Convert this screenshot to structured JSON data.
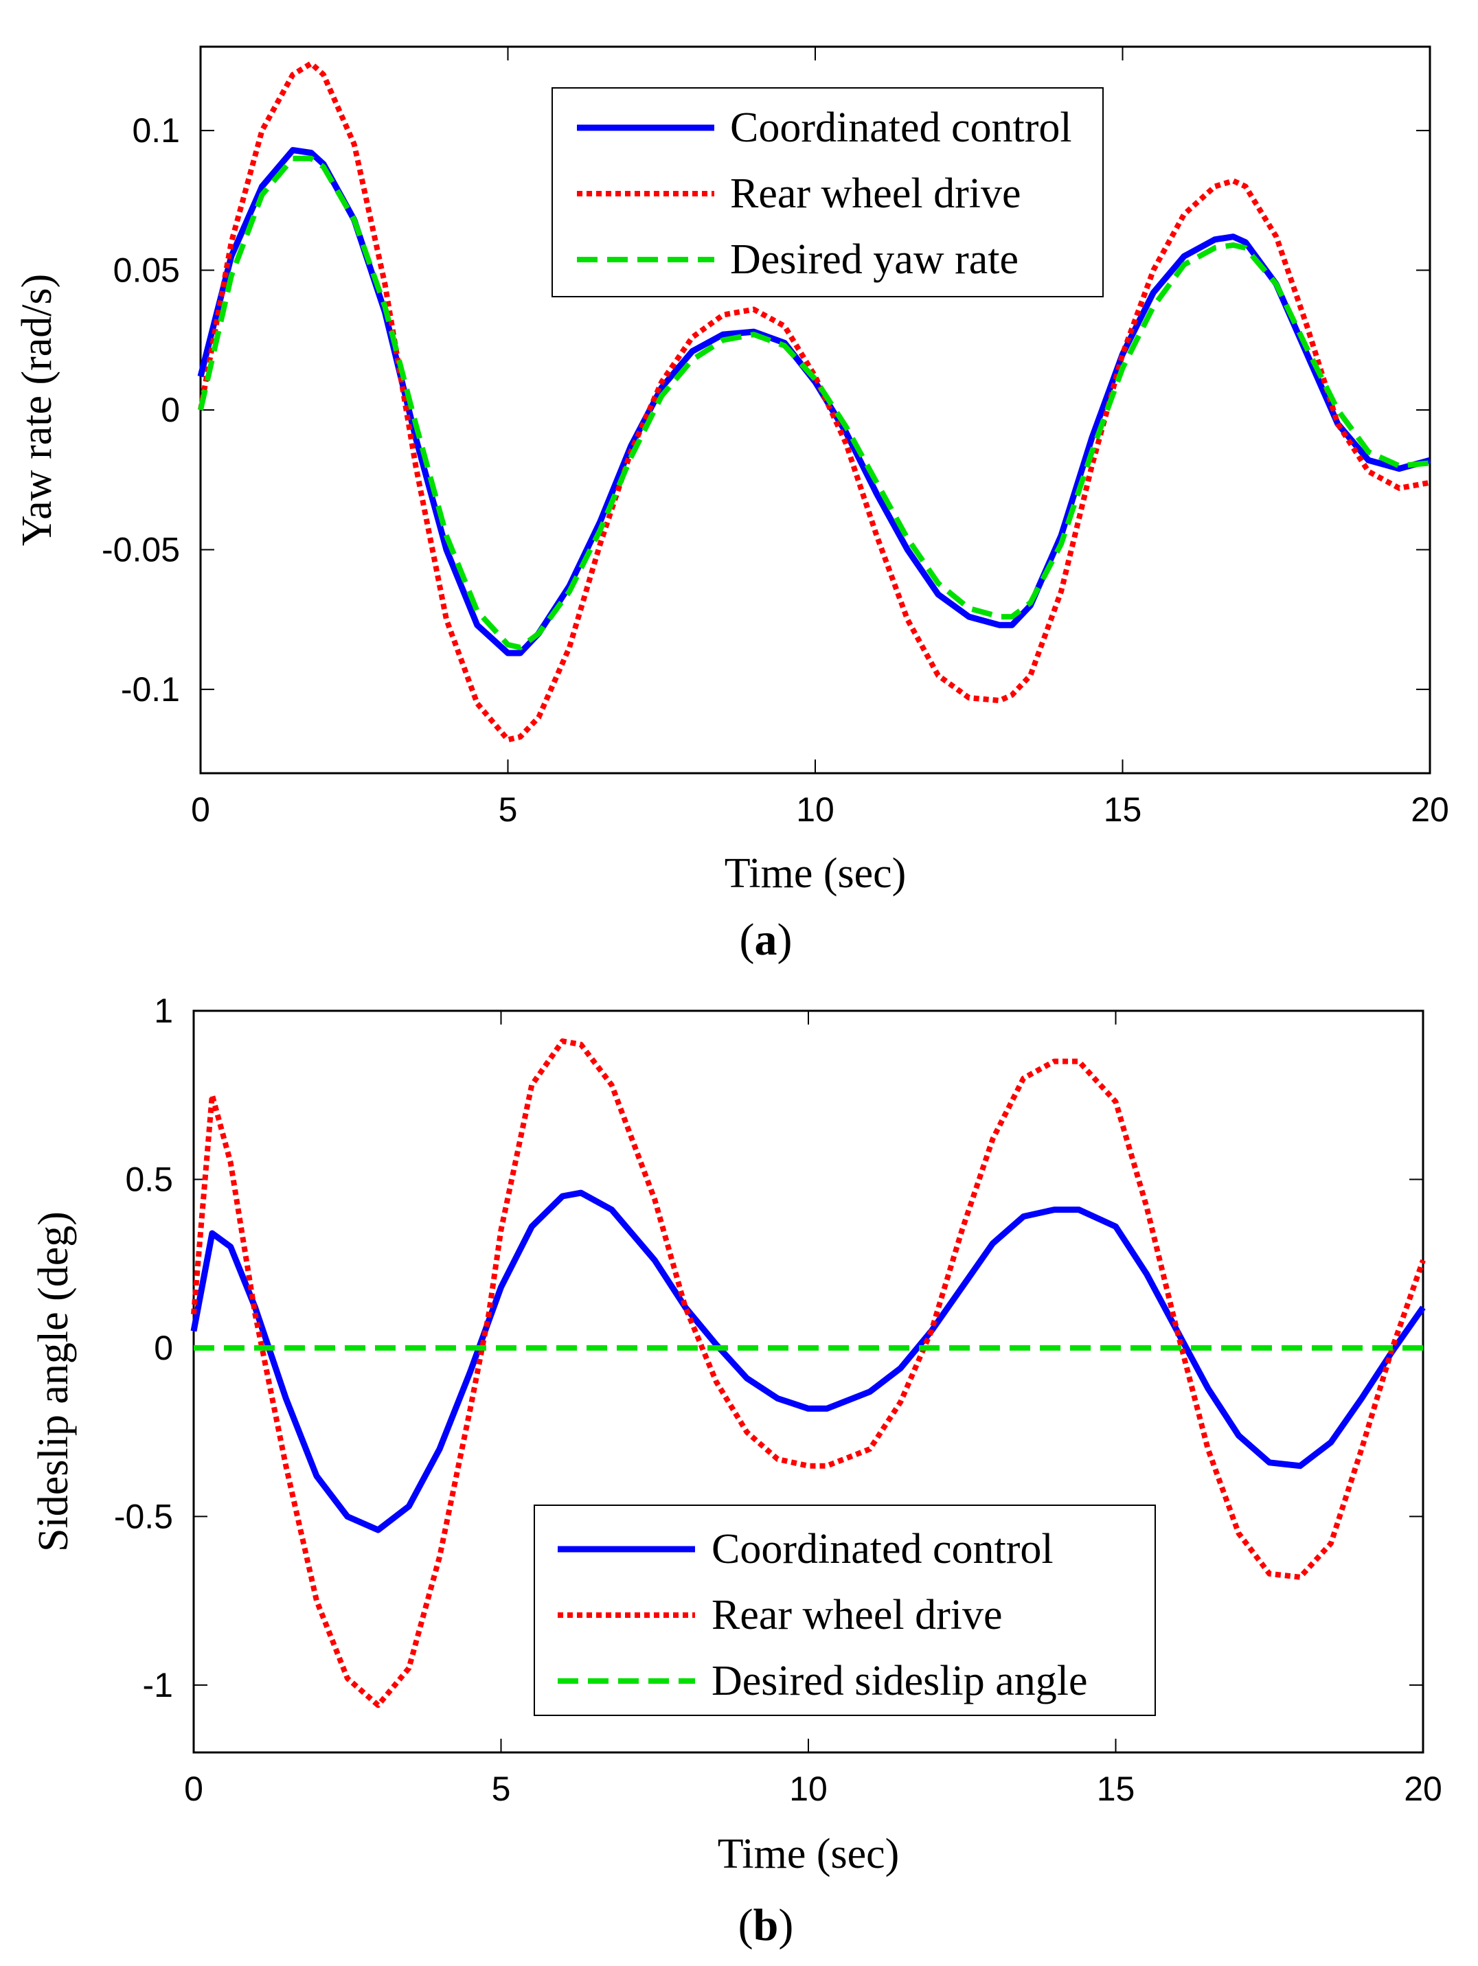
{
  "chart_data": [
    {
      "type": "line",
      "panel_label": "a",
      "xlabel": "Time (sec)",
      "ylabel": "Yaw rate (rad/s)",
      "xlim": [
        0,
        20
      ],
      "ylim": [
        -0.13,
        0.13
      ],
      "xticks": [
        0,
        5,
        10,
        15,
        20
      ],
      "yticks": [
        -0.1,
        -0.05,
        0,
        0.05,
        0.1
      ],
      "xtick_labels": [
        "0",
        "5",
        "10",
        "15",
        "20"
      ],
      "ytick_labels": [
        "-0.1",
        "-0.05",
        "0",
        "0.05",
        "0.1"
      ],
      "grid": false,
      "legend_position": "top-center",
      "x": [
        0,
        0.5,
        1,
        1.5,
        1.8,
        2,
        2.5,
        3,
        3.5,
        4,
        4.5,
        5,
        5.2,
        5.5,
        6,
        6.5,
        7,
        7.5,
        8,
        8.5,
        9,
        9.5,
        10,
        10.5,
        11,
        11.5,
        12,
        12.5,
        13,
        13.2,
        13.5,
        14,
        14.5,
        15,
        15.5,
        16,
        16.5,
        16.8,
        17,
        17.5,
        18,
        18.5,
        19,
        19.5,
        20
      ],
      "series": [
        {
          "name": "Coordinated control",
          "color": "#0000ff",
          "dash": "solid",
          "values": [
            0.012,
            0.055,
            0.08,
            0.093,
            0.092,
            0.088,
            0.068,
            0.035,
            -0.01,
            -0.05,
            -0.077,
            -0.087,
            -0.087,
            -0.08,
            -0.063,
            -0.04,
            -0.013,
            0.008,
            0.021,
            0.027,
            0.028,
            0.024,
            0.01,
            -0.008,
            -0.03,
            -0.05,
            -0.066,
            -0.074,
            -0.077,
            -0.077,
            -0.07,
            -0.045,
            -0.01,
            0.02,
            0.042,
            0.055,
            0.061,
            0.062,
            0.06,
            0.045,
            0.02,
            -0.005,
            -0.018,
            -0.021,
            -0.018
          ]
        },
        {
          "name": "Rear wheel drive",
          "color": "#ff0000",
          "dash": "dotted",
          "values": [
            0.0,
            0.06,
            0.1,
            0.12,
            0.124,
            0.12,
            0.095,
            0.045,
            -0.02,
            -0.075,
            -0.105,
            -0.118,
            -0.117,
            -0.11,
            -0.085,
            -0.048,
            -0.015,
            0.01,
            0.026,
            0.034,
            0.036,
            0.03,
            0.012,
            -0.012,
            -0.045,
            -0.075,
            -0.095,
            -0.103,
            -0.104,
            -0.102,
            -0.095,
            -0.065,
            -0.02,
            0.02,
            0.05,
            0.07,
            0.08,
            0.082,
            0.08,
            0.062,
            0.03,
            -0.005,
            -0.022,
            -0.028,
            -0.026
          ]
        },
        {
          "name": "Desired yaw rate",
          "color": "#00e000",
          "dash": "dashed",
          "values": [
            0.0,
            0.048,
            0.077,
            0.09,
            0.09,
            0.087,
            0.068,
            0.037,
            -0.005,
            -0.045,
            -0.072,
            -0.084,
            -0.085,
            -0.08,
            -0.065,
            -0.043,
            -0.017,
            0.005,
            0.018,
            0.025,
            0.027,
            0.023,
            0.011,
            -0.006,
            -0.026,
            -0.046,
            -0.062,
            -0.071,
            -0.074,
            -0.074,
            -0.069,
            -0.048,
            -0.015,
            0.015,
            0.037,
            0.052,
            0.058,
            0.059,
            0.058,
            0.045,
            0.022,
            0.0,
            -0.015,
            -0.02,
            -0.019
          ]
        }
      ]
    },
    {
      "type": "line",
      "panel_label": "b",
      "xlabel": "Time (sec)",
      "ylabel": "Sideslip angle (deg)",
      "xlim": [
        0,
        20
      ],
      "ylim": [
        -1.2,
        1.0
      ],
      "xticks": [
        0,
        5,
        10,
        15,
        20
      ],
      "yticks": [
        -1,
        -0.5,
        0,
        0.5,
        1
      ],
      "xtick_labels": [
        "0",
        "5",
        "10",
        "15",
        "20"
      ],
      "ytick_labels": [
        "-1",
        "-0.5",
        "0",
        "0.5",
        "1"
      ],
      "grid": false,
      "legend_position": "bottom-center",
      "x": [
        0,
        0.3,
        0.6,
        1,
        1.5,
        2,
        2.5,
        3,
        3.5,
        4,
        4.5,
        4.8,
        5,
        5.5,
        6,
        6.3,
        6.8,
        7.5,
        8,
        8.5,
        9,
        9.5,
        10,
        10.3,
        11,
        11.5,
        12,
        12.5,
        13,
        13.5,
        14,
        14.4,
        15,
        15.5,
        16,
        16.5,
        17,
        17.5,
        18,
        18.5,
        19,
        19.5,
        20
      ],
      "series": [
        {
          "name": "Coordinated control",
          "color": "#0000ff",
          "dash": "solid",
          "values": [
            0.05,
            0.34,
            0.3,
            0.12,
            -0.15,
            -0.38,
            -0.5,
            -0.54,
            -0.47,
            -0.3,
            -0.07,
            0.08,
            0.18,
            0.36,
            0.45,
            0.46,
            0.41,
            0.26,
            0.12,
            0.01,
            -0.09,
            -0.15,
            -0.18,
            -0.18,
            -0.13,
            -0.06,
            0.05,
            0.18,
            0.31,
            0.39,
            0.41,
            0.41,
            0.36,
            0.22,
            0.05,
            -0.12,
            -0.26,
            -0.34,
            -0.35,
            -0.28,
            -0.15,
            -0.01,
            0.12
          ]
        },
        {
          "name": "Rear wheel drive",
          "color": "#ff0000",
          "dash": "dotted",
          "values": [
            0.1,
            0.75,
            0.55,
            0.1,
            -0.35,
            -0.75,
            -0.98,
            -1.06,
            -0.95,
            -0.62,
            -0.18,
            0.1,
            0.35,
            0.78,
            0.91,
            0.9,
            0.78,
            0.44,
            0.12,
            -0.1,
            -0.25,
            -0.33,
            -0.35,
            -0.35,
            -0.3,
            -0.16,
            0.05,
            0.35,
            0.62,
            0.8,
            0.85,
            0.85,
            0.73,
            0.42,
            0.05,
            -0.3,
            -0.55,
            -0.67,
            -0.68,
            -0.58,
            -0.3,
            0.0,
            0.26
          ]
        },
        {
          "name": "Desired sideslip angle",
          "color": "#00e000",
          "dash": "dashed",
          "values": [
            0,
            0,
            0,
            0,
            0,
            0,
            0,
            0,
            0,
            0,
            0,
            0,
            0,
            0,
            0,
            0,
            0,
            0,
            0,
            0,
            0,
            0,
            0,
            0,
            0,
            0,
            0,
            0,
            0,
            0,
            0,
            0,
            0,
            0,
            0,
            0,
            0,
            0,
            0,
            0,
            0,
            0,
            0
          ]
        }
      ]
    }
  ]
}
